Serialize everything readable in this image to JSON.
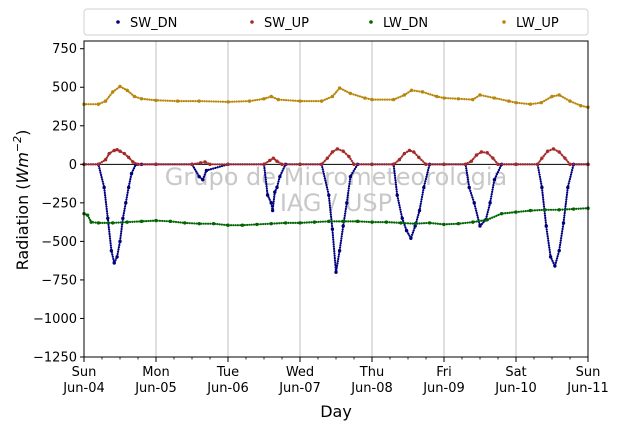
{
  "chart_data": {
    "type": "scatter",
    "xlabel": "Day",
    "ylabel_prefix": "Radiation (",
    "ylabel_unit": "Wm",
    "ylabel_exp": "−2",
    "ylabel_suffix": ")",
    "ylim": [
      -1250,
      800
    ],
    "xlim": [
      0,
      7
    ],
    "yticks": [
      750,
      500,
      250,
      0,
      -250,
      -500,
      -750,
      -1000,
      -1250
    ],
    "ytick_labels": [
      "750",
      "500",
      "250",
      "0",
      "−250",
      "−500",
      "−750",
      "−1000",
      "−1250"
    ],
    "xticks": [
      {
        "x": 0,
        "day": "Sun",
        "date": "Jun-04"
      },
      {
        "x": 1,
        "day": "Mon",
        "date": "Jun-05"
      },
      {
        "x": 2,
        "day": "Tue",
        "date": "Jun-06"
      },
      {
        "x": 3,
        "day": "Wed",
        "date": "Jun-07"
      },
      {
        "x": 4,
        "day": "Thu",
        "date": "Jun-08"
      },
      {
        "x": 5,
        "day": "Fri",
        "date": "Jun-09"
      },
      {
        "x": 6,
        "day": "Sat",
        "date": "Jun-10"
      },
      {
        "x": 7,
        "day": "Sun",
        "date": "Jun-11"
      }
    ],
    "grid": "vertical-major",
    "legend_position": "top",
    "watermark": [
      "Grupo de Micrometeorologia",
      "IAG / USP"
    ],
    "series": [
      {
        "name": "SW_DN",
        "color": "#00007f",
        "x": [
          0.0,
          0.2,
          0.28,
          0.33,
          0.38,
          0.42,
          0.46,
          0.5,
          0.54,
          0.58,
          0.62,
          0.66,
          0.72,
          0.8,
          1.0,
          1.5,
          1.6,
          1.65,
          1.7,
          2.0,
          2.5,
          2.55,
          2.6,
          2.62,
          2.65,
          2.68,
          2.72,
          2.8,
          3.0,
          3.3,
          3.4,
          3.45,
          3.5,
          3.55,
          3.6,
          3.65,
          3.7,
          3.8,
          4.0,
          4.3,
          4.35,
          4.42,
          4.48,
          4.54,
          4.6,
          4.66,
          4.72,
          4.8,
          5.0,
          5.3,
          5.35,
          5.42,
          5.5,
          5.58,
          5.64,
          5.7,
          5.8,
          6.0,
          6.3,
          6.36,
          6.42,
          6.48,
          6.54,
          6.6,
          6.66,
          6.72,
          6.8,
          7.0
        ],
        "y": [
          0,
          0,
          -150,
          -350,
          -560,
          -640,
          -600,
          -500,
          -350,
          -250,
          -150,
          -60,
          0,
          0,
          0,
          0,
          -80,
          -100,
          -40,
          0,
          0,
          -200,
          -250,
          -300,
          -180,
          -150,
          -80,
          0,
          0,
          0,
          -200,
          -420,
          -700,
          -560,
          -400,
          -250,
          -80,
          0,
          0,
          0,
          -200,
          -350,
          -430,
          -480,
          -400,
          -300,
          -150,
          0,
          0,
          0,
          -150,
          -250,
          -400,
          -360,
          -250,
          -100,
          0,
          0,
          0,
          -150,
          -400,
          -600,
          -660,
          -560,
          -380,
          -150,
          0,
          0
        ]
      },
      {
        "name": "SW_UP",
        "color": "#a52a2a",
        "x": [
          0.0,
          0.2,
          0.3,
          0.35,
          0.42,
          0.46,
          0.5,
          0.56,
          0.62,
          0.68,
          0.75,
          1.0,
          1.5,
          1.62,
          1.68,
          1.75,
          2.0,
          2.5,
          2.58,
          2.63,
          2.68,
          2.75,
          3.0,
          3.3,
          3.38,
          3.45,
          3.52,
          3.6,
          3.68,
          3.75,
          4.0,
          4.3,
          4.38,
          4.45,
          4.52,
          4.58,
          4.65,
          4.75,
          5.0,
          5.3,
          5.38,
          5.45,
          5.52,
          5.6,
          5.68,
          5.75,
          6.0,
          6.3,
          6.36,
          6.44,
          6.52,
          6.6,
          6.68,
          6.75,
          7.0
        ],
        "y": [
          0,
          0,
          30,
          70,
          90,
          95,
          85,
          70,
          45,
          15,
          0,
          0,
          0,
          10,
          15,
          0,
          0,
          0,
          25,
          40,
          20,
          0,
          0,
          0,
          40,
          80,
          100,
          85,
          50,
          0,
          0,
          0,
          30,
          70,
          90,
          80,
          45,
          0,
          0,
          0,
          20,
          60,
          80,
          75,
          40,
          0,
          0,
          0,
          40,
          85,
          100,
          80,
          40,
          0,
          0
        ]
      },
      {
        "name": "LW_DN",
        "color": "#006400",
        "x": [
          0.0,
          0.05,
          0.1,
          0.2,
          0.4,
          0.6,
          0.8,
          1.0,
          1.2,
          1.4,
          1.6,
          1.8,
          2.0,
          2.2,
          2.4,
          2.6,
          2.8,
          3.0,
          3.2,
          3.4,
          3.6,
          3.8,
          4.0,
          4.2,
          4.4,
          4.6,
          4.8,
          5.0,
          5.2,
          5.4,
          5.6,
          5.8,
          6.0,
          6.2,
          6.4,
          6.6,
          6.8,
          7.0
        ],
        "y": [
          -320,
          -330,
          -375,
          -380,
          -380,
          -375,
          -370,
          -365,
          -370,
          -380,
          -385,
          -385,
          -395,
          -395,
          -390,
          -385,
          -380,
          -380,
          -375,
          -370,
          -370,
          -370,
          -375,
          -375,
          -380,
          -385,
          -380,
          -390,
          -385,
          -375,
          -360,
          -320,
          -310,
          -300,
          -295,
          -295,
          -290,
          -285
        ]
      },
      {
        "name": "LW_UP",
        "color": "#b8860b",
        "x": [
          0.0,
          0.2,
          0.3,
          0.4,
          0.5,
          0.6,
          0.7,
          0.8,
          1.0,
          1.3,
          1.6,
          2.0,
          2.3,
          2.5,
          2.6,
          2.7,
          3.0,
          3.3,
          3.45,
          3.55,
          3.7,
          3.9,
          4.0,
          4.3,
          4.45,
          4.55,
          4.7,
          4.9,
          5.0,
          5.2,
          5.4,
          5.5,
          5.7,
          5.9,
          6.0,
          6.2,
          6.35,
          6.5,
          6.6,
          6.75,
          6.9,
          7.0
        ],
        "y": [
          390,
          390,
          410,
          470,
          505,
          480,
          440,
          425,
          415,
          410,
          410,
          405,
          410,
          425,
          440,
          420,
          410,
          410,
          440,
          495,
          460,
          430,
          420,
          420,
          450,
          480,
          470,
          440,
          430,
          425,
          420,
          450,
          430,
          410,
          400,
          390,
          400,
          440,
          450,
          410,
          380,
          370
        ]
      }
    ]
  }
}
